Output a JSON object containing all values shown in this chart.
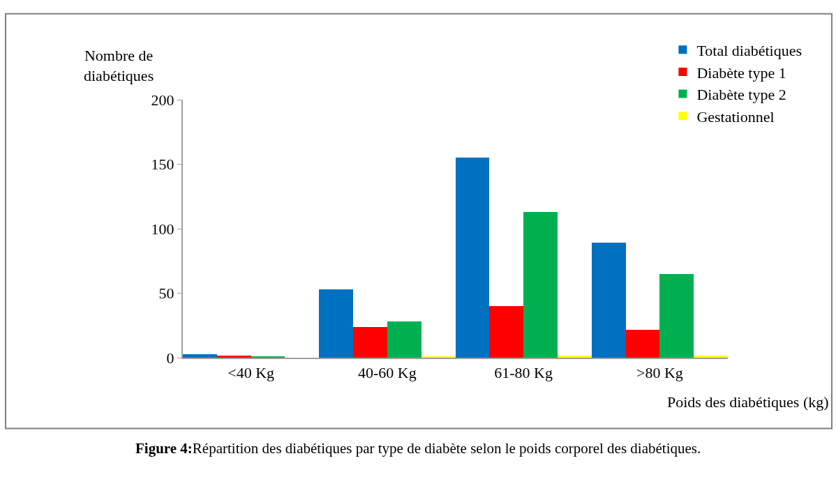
{
  "chart_data": {
    "type": "bar",
    "title": "Figure 4:",
    "subtitle": "Répartition des diabétiques par type de diabète selon le poids corporel des diabétiques.",
    "xlabel": "Poids des diabétiques (kg)",
    "ylabel": "Nombre de diabétiques",
    "categories": [
      "<40 Kg",
      "40-60 Kg",
      "61-80 Kg",
      ">80 Kg"
    ],
    "series": [
      {
        "name": "Total diabétiques",
        "color": "#0070c0",
        "values": [
          3,
          53,
          155,
          89
        ]
      },
      {
        "name": "Diabète type 1",
        "color": "#ff0000",
        "values": [
          2,
          24,
          40,
          22
        ]
      },
      {
        "name": "Diabète type 2",
        "color": "#00b050",
        "values": [
          1,
          28,
          113,
          65
        ]
      },
      {
        "name": "Gestationnel",
        "color": "#ffff00",
        "values": [
          0,
          1,
          2,
          2
        ]
      }
    ],
    "ylim": [
      0,
      200
    ],
    "yticks": [
      0,
      50,
      100,
      150,
      200
    ],
    "legend": "top right"
  }
}
